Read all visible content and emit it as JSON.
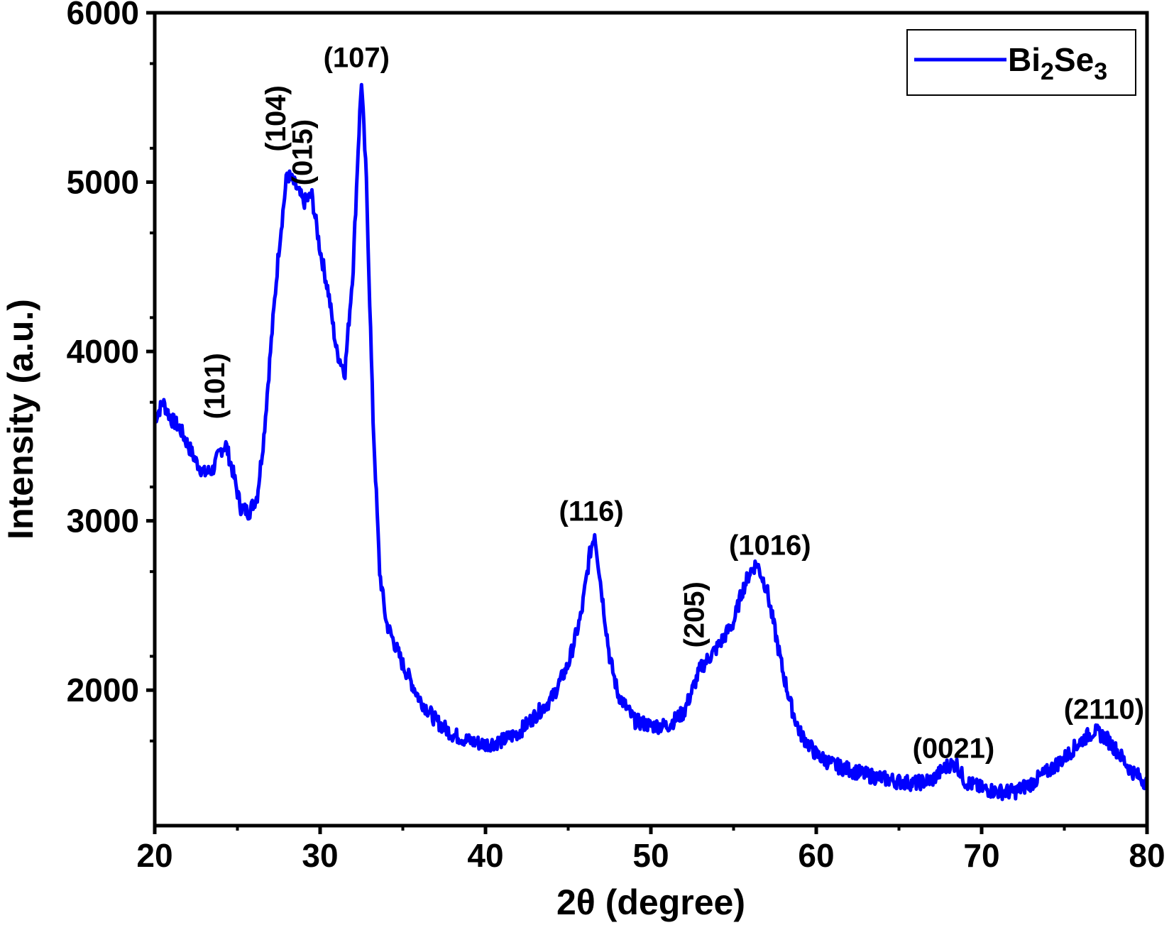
{
  "chart_data": {
    "type": "line",
    "title": "",
    "xlabel": "2θ (degree)",
    "ylabel": "Intensity (a.u.)",
    "xlim": [
      20,
      80
    ],
    "ylim": [
      1200,
      6000
    ],
    "x_ticks": [
      20,
      30,
      40,
      50,
      60,
      70,
      80
    ],
    "y_ticks": [
      2000,
      3000,
      4000,
      5000,
      6000
    ],
    "grid": false,
    "legend_position": "top-right",
    "line_color": "#0000ff",
    "series": [
      {
        "name": "Bi2Se3",
        "legend_label": {
          "base1": "Bi",
          "sub1": "2",
          "base2": "Se",
          "sub2": "3"
        },
        "points": [
          [
            20,
            3600
          ],
          [
            20.5,
            3700
          ],
          [
            21,
            3600
          ],
          [
            21.5,
            3550
          ],
          [
            22,
            3450
          ],
          [
            22.5,
            3350
          ],
          [
            23,
            3280
          ],
          [
            23.5,
            3300
          ],
          [
            24,
            3420
          ],
          [
            24.3,
            3450
          ],
          [
            24.7,
            3300
          ],
          [
            25.2,
            3080
          ],
          [
            25.7,
            3050
          ],
          [
            26.2,
            3150
          ],
          [
            26.6,
            3500
          ],
          [
            27,
            4000
          ],
          [
            27.5,
            4600
          ],
          [
            28,
            5050
          ],
          [
            28.5,
            4980
          ],
          [
            29,
            4880
          ],
          [
            29.5,
            4920
          ],
          [
            30,
            4600
          ],
          [
            30.5,
            4350
          ],
          [
            31,
            4000
          ],
          [
            31.5,
            3880
          ],
          [
            32,
            4500
          ],
          [
            32.3,
            5200
          ],
          [
            32.5,
            5600
          ],
          [
            32.8,
            5000
          ],
          [
            33.2,
            3600
          ],
          [
            33.6,
            2700
          ],
          [
            34,
            2400
          ],
          [
            35,
            2150
          ],
          [
            36,
            1950
          ],
          [
            37,
            1820
          ],
          [
            38,
            1740
          ],
          [
            39,
            1700
          ],
          [
            40,
            1680
          ],
          [
            41,
            1700
          ],
          [
            42,
            1750
          ],
          [
            43,
            1850
          ],
          [
            44,
            1950
          ],
          [
            45,
            2150
          ],
          [
            45.8,
            2450
          ],
          [
            46.3,
            2800
          ],
          [
            46.6,
            2930
          ],
          [
            47,
            2600
          ],
          [
            47.5,
            2200
          ],
          [
            48,
            1980
          ],
          [
            49,
            1820
          ],
          [
            50,
            1790
          ],
          [
            51,
            1790
          ],
          [
            52,
            1870
          ],
          [
            52.5,
            2000
          ],
          [
            53,
            2130
          ],
          [
            54,
            2250
          ],
          [
            55,
            2400
          ],
          [
            55.5,
            2580
          ],
          [
            56,
            2700
          ],
          [
            56.4,
            2750
          ],
          [
            57,
            2600
          ],
          [
            57.5,
            2350
          ],
          [
            58,
            2100
          ],
          [
            58.5,
            1900
          ],
          [
            59,
            1750
          ],
          [
            60,
            1620
          ],
          [
            61,
            1560
          ],
          [
            62,
            1530
          ],
          [
            63,
            1500
          ],
          [
            64,
            1480
          ],
          [
            65,
            1460
          ],
          [
            66,
            1450
          ],
          [
            67,
            1470
          ],
          [
            68,
            1560
          ],
          [
            68.5,
            1560
          ],
          [
            69,
            1460
          ],
          [
            70,
            1420
          ],
          [
            71,
            1400
          ],
          [
            72,
            1400
          ],
          [
            73,
            1450
          ],
          [
            74,
            1520
          ],
          [
            75,
            1600
          ],
          [
            76,
            1700
          ],
          [
            76.8,
            1760
          ],
          [
            77.5,
            1720
          ],
          [
            78.2,
            1640
          ],
          [
            79,
            1530
          ],
          [
            80,
            1450
          ]
        ]
      }
    ],
    "annotations": [
      {
        "text": "(101)",
        "x": 24.2,
        "y": 3600,
        "rotate": true
      },
      {
        "text": "(104)",
        "x": 27.9,
        "y": 5180,
        "rotate": true
      },
      {
        "text": "(015)",
        "x": 29.5,
        "y": 4980,
        "rotate": true
      },
      {
        "text": "(107)",
        "x": 32.2,
        "y": 5680,
        "rotate": false
      },
      {
        "text": "(116)",
        "x": 46.4,
        "y": 3000,
        "rotate": false
      },
      {
        "text": "(205)",
        "x": 53.2,
        "y": 2250,
        "rotate": true
      },
      {
        "text": "(1016)",
        "x": 57.2,
        "y": 2800,
        "rotate": false
      },
      {
        "text": "(0021)",
        "x": 68.3,
        "y": 1600,
        "rotate": false
      },
      {
        "text": "(2110)",
        "x": 77.4,
        "y": 1830,
        "rotate": false
      }
    ]
  }
}
